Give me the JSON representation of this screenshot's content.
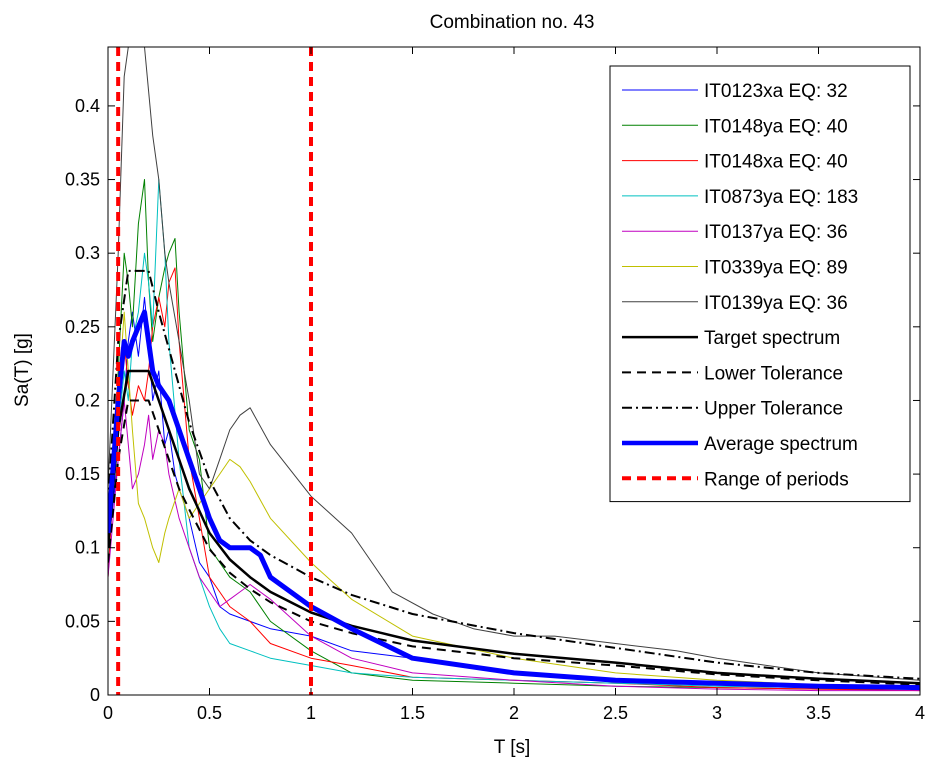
{
  "chart_data": {
    "type": "line",
    "title": "Combination no. 43",
    "xlabel": "T [s]",
    "ylabel": "Sa(T) [g]",
    "xlim": [
      0,
      4
    ],
    "ylim": [
      0,
      0.44
    ],
    "xticks": [
      0,
      0.5,
      1,
      1.5,
      2,
      2.5,
      3,
      3.5,
      4
    ],
    "xtick_labels": [
      "0",
      "0.5",
      "1",
      "1.5",
      "2",
      "2.5",
      "3",
      "3.5",
      "4"
    ],
    "yticks": [
      0,
      0.05,
      0.1,
      0.15,
      0.2,
      0.25,
      0.3,
      0.35,
      0.4
    ],
    "ytick_labels": [
      "0",
      "0.05",
      "0.1",
      "0.15",
      "0.2",
      "0.25",
      "0.3",
      "0.35",
      "0.4"
    ],
    "grid": false,
    "legend_position": "top-right",
    "series": [
      {
        "name": "IT0123xa EQ: 32",
        "color": "#0000ff",
        "style": "solid",
        "width": 1,
        "x": [
          0,
          0.05,
          0.08,
          0.1,
          0.12,
          0.15,
          0.18,
          0.2,
          0.22,
          0.25,
          0.28,
          0.3,
          0.33,
          0.35,
          0.4,
          0.45,
          0.5,
          0.55,
          0.6,
          0.7,
          0.8,
          1.0,
          1.2,
          1.5,
          2.0,
          2.5,
          3.0,
          3.5,
          4.0
        ],
        "y": [
          0.1,
          0.16,
          0.2,
          0.24,
          0.26,
          0.23,
          0.27,
          0.24,
          0.2,
          0.22,
          0.17,
          0.18,
          0.15,
          0.14,
          0.12,
          0.09,
          0.08,
          0.06,
          0.055,
          0.05,
          0.045,
          0.04,
          0.03,
          0.025,
          0.015,
          0.01,
          0.008,
          0.006,
          0.005
        ]
      },
      {
        "name": "IT0148ya EQ: 40",
        "color": "#008000",
        "style": "solid",
        "width": 1,
        "x": [
          0,
          0.05,
          0.08,
          0.1,
          0.12,
          0.15,
          0.18,
          0.2,
          0.22,
          0.25,
          0.28,
          0.3,
          0.33,
          0.35,
          0.4,
          0.45,
          0.5,
          0.55,
          0.6,
          0.65,
          0.7,
          0.8,
          1.0,
          1.2,
          1.5,
          2.0,
          2.5,
          3.0,
          3.5,
          4.0
        ],
        "y": [
          0.08,
          0.22,
          0.3,
          0.28,
          0.25,
          0.32,
          0.35,
          0.28,
          0.24,
          0.27,
          0.29,
          0.3,
          0.31,
          0.26,
          0.18,
          0.16,
          0.1,
          0.09,
          0.08,
          0.075,
          0.07,
          0.05,
          0.03,
          0.015,
          0.01,
          0.008,
          0.006,
          0.005,
          0.004,
          0.004
        ]
      },
      {
        "name": "IT0148xa EQ: 40",
        "color": "#ff0000",
        "style": "solid",
        "width": 1,
        "x": [
          0,
          0.05,
          0.08,
          0.1,
          0.12,
          0.15,
          0.18,
          0.2,
          0.22,
          0.25,
          0.28,
          0.3,
          0.33,
          0.35,
          0.4,
          0.45,
          0.5,
          0.55,
          0.6,
          0.7,
          0.8,
          1.0,
          1.2,
          1.5,
          2.0,
          2.5,
          3.0,
          3.5,
          4.0
        ],
        "y": [
          0.08,
          0.2,
          0.24,
          0.21,
          0.19,
          0.21,
          0.2,
          0.22,
          0.25,
          0.27,
          0.25,
          0.28,
          0.29,
          0.24,
          0.16,
          0.12,
          0.08,
          0.07,
          0.06,
          0.05,
          0.035,
          0.025,
          0.02,
          0.012,
          0.01,
          0.008,
          0.005,
          0.004,
          0.003
        ]
      },
      {
        "name": "IT0873ya EQ: 183",
        "color": "#00c0c0",
        "style": "solid",
        "width": 1,
        "x": [
          0,
          0.05,
          0.08,
          0.1,
          0.12,
          0.15,
          0.18,
          0.2,
          0.22,
          0.25,
          0.28,
          0.3,
          0.35,
          0.4,
          0.45,
          0.5,
          0.55,
          0.6,
          0.7,
          0.8,
          1.0,
          1.2,
          1.5,
          2.0,
          2.5,
          3.0,
          3.5,
          4.0
        ],
        "y": [
          0.1,
          0.18,
          0.22,
          0.2,
          0.24,
          0.26,
          0.3,
          0.28,
          0.25,
          0.35,
          0.3,
          0.24,
          0.16,
          0.1,
          0.08,
          0.06,
          0.045,
          0.035,
          0.03,
          0.025,
          0.02,
          0.015,
          0.012,
          0.01,
          0.008,
          0.006,
          0.005,
          0.004
        ]
      },
      {
        "name": "IT0137ya EQ: 36",
        "color": "#c000c0",
        "style": "solid",
        "width": 1,
        "x": [
          0,
          0.05,
          0.08,
          0.1,
          0.12,
          0.15,
          0.18,
          0.2,
          0.22,
          0.25,
          0.28,
          0.3,
          0.35,
          0.4,
          0.45,
          0.5,
          0.55,
          0.6,
          0.65,
          0.7,
          0.8,
          1.0,
          1.2,
          1.5,
          2.0,
          2.5,
          3.0,
          3.5,
          4.0
        ],
        "y": [
          0.08,
          0.16,
          0.2,
          0.17,
          0.14,
          0.15,
          0.17,
          0.19,
          0.16,
          0.18,
          0.17,
          0.15,
          0.12,
          0.1,
          0.08,
          0.07,
          0.06,
          0.065,
          0.07,
          0.075,
          0.065,
          0.04,
          0.025,
          0.015,
          0.01,
          0.006,
          0.004,
          0.003,
          0.003
        ]
      },
      {
        "name": "IT0339ya EQ: 89",
        "color": "#c0c000",
        "style": "solid",
        "width": 1,
        "x": [
          0,
          0.05,
          0.08,
          0.1,
          0.12,
          0.15,
          0.18,
          0.2,
          0.22,
          0.25,
          0.28,
          0.3,
          0.35,
          0.4,
          0.45,
          0.5,
          0.55,
          0.6,
          0.65,
          0.7,
          0.8,
          1.0,
          1.2,
          1.5,
          2.0,
          2.5,
          3.0,
          3.5,
          4.0
        ],
        "y": [
          0.1,
          0.2,
          0.26,
          0.22,
          0.18,
          0.13,
          0.12,
          0.11,
          0.1,
          0.09,
          0.11,
          0.12,
          0.14,
          0.12,
          0.13,
          0.14,
          0.15,
          0.16,
          0.155,
          0.145,
          0.12,
          0.09,
          0.065,
          0.04,
          0.025,
          0.015,
          0.01,
          0.007,
          0.005
        ]
      },
      {
        "name": "IT0139ya EQ: 36",
        "color": "#404040",
        "style": "solid",
        "width": 1,
        "x": [
          0,
          0.05,
          0.08,
          0.1,
          0.12,
          0.15,
          0.18,
          0.2,
          0.22,
          0.25,
          0.28,
          0.3,
          0.35,
          0.4,
          0.45,
          0.5,
          0.55,
          0.6,
          0.65,
          0.7,
          0.8,
          1.0,
          1.2,
          1.4,
          1.6,
          1.8,
          2.0,
          2.2,
          2.5,
          2.8,
          3.0,
          3.5,
          4.0
        ],
        "y": [
          0.14,
          0.3,
          0.42,
          0.44,
          0.44,
          0.44,
          0.44,
          0.41,
          0.38,
          0.35,
          0.3,
          0.28,
          0.24,
          0.2,
          0.15,
          0.14,
          0.16,
          0.18,
          0.19,
          0.195,
          0.17,
          0.135,
          0.11,
          0.07,
          0.055,
          0.045,
          0.04,
          0.04,
          0.035,
          0.03,
          0.025,
          0.015,
          0.01
        ]
      },
      {
        "name": "Target spectrum",
        "color": "#000000",
        "style": "solid",
        "width": 2.5,
        "x": [
          0,
          0.05,
          0.1,
          0.15,
          0.2,
          0.25,
          0.3,
          0.35,
          0.4,
          0.5,
          0.6,
          0.7,
          0.8,
          1.0,
          1.2,
          1.5,
          2.0,
          2.5,
          3.0,
          3.5,
          4.0
        ],
        "y": [
          0.1,
          0.18,
          0.22,
          0.22,
          0.22,
          0.2,
          0.18,
          0.16,
          0.14,
          0.11,
          0.092,
          0.08,
          0.07,
          0.056,
          0.047,
          0.037,
          0.028,
          0.022,
          0.015,
          0.011,
          0.008
        ]
      },
      {
        "name": "Lower Tolerance",
        "color": "#000000",
        "style": "dashed",
        "width": 2,
        "x": [
          0,
          0.05,
          0.1,
          0.15,
          0.2,
          0.25,
          0.3,
          0.35,
          0.4,
          0.5,
          0.6,
          0.7,
          0.8,
          1.0,
          1.2,
          1.5,
          2.0,
          2.5,
          3.0,
          3.5,
          4.0
        ],
        "y": [
          0.09,
          0.16,
          0.2,
          0.2,
          0.2,
          0.18,
          0.16,
          0.14,
          0.126,
          0.099,
          0.083,
          0.072,
          0.063,
          0.05,
          0.042,
          0.033,
          0.025,
          0.02,
          0.014,
          0.01,
          0.007
        ]
      },
      {
        "name": "Upper Tolerance",
        "color": "#000000",
        "style": "dashdot",
        "width": 2,
        "x": [
          0,
          0.05,
          0.1,
          0.15,
          0.2,
          0.25,
          0.3,
          0.35,
          0.4,
          0.5,
          0.6,
          0.7,
          0.8,
          1.0,
          1.2,
          1.5,
          2.0,
          2.5,
          3.0,
          3.5,
          4.0
        ],
        "y": [
          0.13,
          0.24,
          0.288,
          0.288,
          0.288,
          0.26,
          0.235,
          0.21,
          0.185,
          0.146,
          0.12,
          0.105,
          0.095,
          0.08,
          0.068,
          0.055,
          0.042,
          0.032,
          0.022,
          0.015,
          0.011
        ]
      },
      {
        "name": "Average spectrum",
        "color": "#0000ff",
        "style": "solid",
        "width": 5,
        "x": [
          0,
          0.05,
          0.08,
          0.1,
          0.12,
          0.15,
          0.18,
          0.2,
          0.22,
          0.25,
          0.3,
          0.35,
          0.4,
          0.45,
          0.5,
          0.55,
          0.6,
          0.65,
          0.7,
          0.75,
          0.8,
          1.0,
          1.2,
          1.5,
          2.0,
          2.5,
          3.0,
          3.5,
          4.0
        ],
        "y": [
          0.11,
          0.2,
          0.24,
          0.23,
          0.24,
          0.25,
          0.26,
          0.24,
          0.22,
          0.21,
          0.2,
          0.18,
          0.16,
          0.14,
          0.12,
          0.105,
          0.1,
          0.1,
          0.1,
          0.095,
          0.08,
          0.06,
          0.045,
          0.025,
          0.015,
          0.01,
          0.008,
          0.006,
          0.005
        ]
      }
    ],
    "vertical_lines": {
      "name": "Range of periods",
      "color": "#ff0000",
      "style": "dashed",
      "width": 4,
      "x": [
        0.05,
        1.0
      ]
    }
  }
}
